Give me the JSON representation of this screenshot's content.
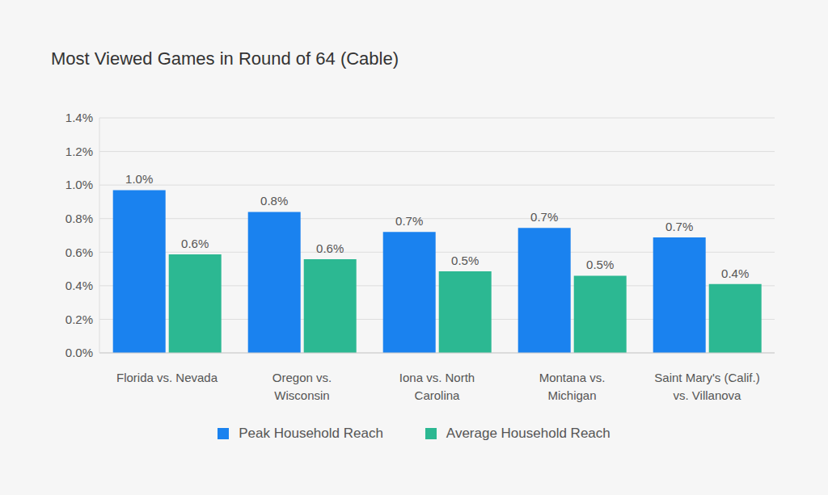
{
  "chart_data": {
    "type": "bar",
    "title": "Most Viewed Games in Round of 64 (Cable)",
    "categories": [
      "Florida vs. Nevada",
      "Oregon vs. Wisconsin",
      "Iona vs. North Carolina",
      "Montana vs. Michigan",
      "Saint Mary's (Calif.) vs. Villanova"
    ],
    "series": [
      {
        "name": "Peak Household Reach",
        "color": "#1a82ef",
        "values": [
          0.97,
          0.84,
          0.72,
          0.745,
          0.688
        ],
        "value_labels": [
          "1.0%",
          "0.8%",
          "0.7%",
          "0.7%",
          "0.7%"
        ]
      },
      {
        "name": "Average Household Reach",
        "color": "#2cb892",
        "values": [
          0.587,
          0.558,
          0.486,
          0.46,
          0.41
        ],
        "value_labels": [
          "0.6%",
          "0.6%",
          "0.5%",
          "0.5%",
          "0.4%"
        ]
      }
    ],
    "ylim": [
      0,
      1.4
    ],
    "yticks": [
      {
        "value": 0,
        "label": "0.0%"
      },
      {
        "value": 0.2,
        "label": "0.2%"
      },
      {
        "value": 0.4,
        "label": "0.4%"
      },
      {
        "value": 0.6,
        "label": "0.6%"
      },
      {
        "value": 0.8,
        "label": "0.8%"
      },
      {
        "value": 1.0,
        "label": "1.0%"
      },
      {
        "value": 1.2,
        "label": "1.2%"
      },
      {
        "value": 1.4,
        "label": "1.4%"
      }
    ],
    "grid": true,
    "data_labels": true,
    "legend": "bottom"
  }
}
